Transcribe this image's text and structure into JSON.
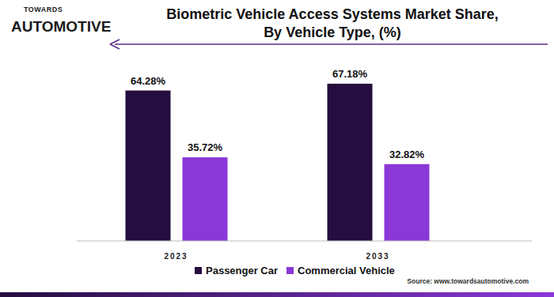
{
  "chart_data": {
    "type": "bar",
    "title": "Biometric Vehicle Access Systems Market Share,\nBy Vehicle Type, (%)",
    "brand": {
      "top": "TOWARDS",
      "bottom": "AUTOMOTIVE"
    },
    "source": "Source: www.towardsautomotive.com",
    "categories": [
      "2023",
      "2033"
    ],
    "series": [
      {
        "name": "Passenger Car",
        "color": "#250d3f",
        "values": [
          64.28,
          67.18
        ],
        "value_labels": [
          "64.28%",
          "67.18%"
        ]
      },
      {
        "name": "Commercial Vehicle",
        "color": "#8a38d8",
        "values": [
          35.72,
          32.82
        ],
        "value_labels": [
          "35.72%",
          "32.82%"
        ]
      }
    ],
    "ylim": [
      0,
      80
    ],
    "grid": false,
    "data_labels": true,
    "tick_labels": "x",
    "legend": "bottom"
  }
}
